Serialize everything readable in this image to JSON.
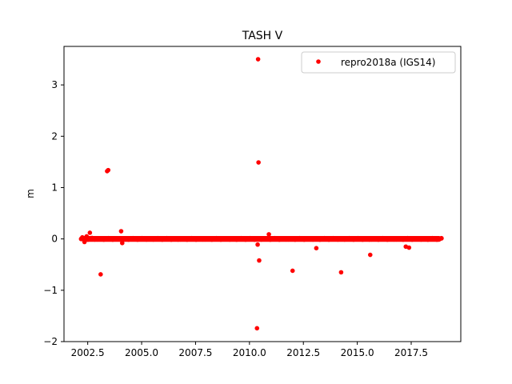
{
  "chart_data": {
    "type": "scatter",
    "title": "TASH V",
    "xlabel": "",
    "ylabel": "m",
    "xlim": [
      2001.4,
      2019.8
    ],
    "ylim": [
      -2.0,
      3.75
    ],
    "x_ticks": [
      2002.5,
      2005.0,
      2007.5,
      2010.0,
      2012.5,
      2015.0,
      2017.5
    ],
    "x_tick_labels": [
      "2002.5",
      "2005.0",
      "2007.5",
      "2010.0",
      "2012.5",
      "2015.0",
      "2017.5"
    ],
    "y_ticks": [
      -2,
      -1,
      0,
      1,
      2,
      3
    ],
    "y_tick_labels": [
      "−2",
      "−1",
      "0",
      "1",
      "2",
      "3"
    ],
    "legend_position": "top-right",
    "grid": false,
    "colors": {
      "series": "#ff0000",
      "axes": "#000000",
      "legend_border": "#cccccc"
    },
    "dense_band": {
      "x_start": 2002.2,
      "x_end": 2018.9,
      "y_center": 0.0,
      "y_halfwidth": 0.025
    },
    "series": [
      {
        "name": "repro2018a (IGS14)",
        "marker": "circle",
        "x": [
          2002.25,
          2002.35,
          2002.45,
          2002.6,
          2002.7,
          2003.1,
          2003.4,
          2003.45,
          2004.05,
          2004.1,
          2010.35,
          2010.4,
          2010.42,
          2010.38,
          2010.45,
          2010.9,
          2012.0,
          2013.1,
          2014.25,
          2015.6,
          2017.25,
          2017.4
        ],
        "y": [
          0.03,
          -0.06,
          0.05,
          0.12,
          0.02,
          -0.69,
          1.32,
          1.34,
          0.15,
          -0.08,
          -1.74,
          3.5,
          1.49,
          -0.11,
          -0.42,
          0.09,
          -0.62,
          -0.18,
          -0.65,
          -0.31,
          -0.15,
          -0.17
        ]
      }
    ]
  }
}
